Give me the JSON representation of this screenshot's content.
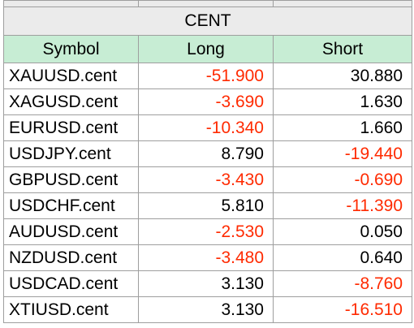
{
  "group_title": "CENT",
  "columns": {
    "symbol": "Symbol",
    "long": "Long",
    "short": "Short"
  },
  "colors": {
    "negative": "#ff2a00",
    "positive": "#000000",
    "header_bg": "#c7edd4",
    "group_bg": "#ebebeb",
    "grid": "#9e9e9e"
  },
  "rows": [
    {
      "symbol": "XAUUSD.cent",
      "long": "-51.900",
      "short": "30.880"
    },
    {
      "symbol": "XAGUSD.cent",
      "long": "-3.690",
      "short": "1.630"
    },
    {
      "symbol": "EURUSD.cent",
      "long": "-10.340",
      "short": "1.660"
    },
    {
      "symbol": "USDJPY.cent",
      "long": "8.790",
      "short": "-19.440"
    },
    {
      "symbol": "GBPUSD.cent",
      "long": "-3.430",
      "short": "-0.690"
    },
    {
      "symbol": "USDCHF.cent",
      "long": "5.810",
      "short": "-11.390"
    },
    {
      "symbol": "AUDUSD.cent",
      "long": "-2.530",
      "short": "0.050"
    },
    {
      "symbol": "NZDUSD.cent",
      "long": "-3.480",
      "short": "0.640"
    },
    {
      "symbol": "USDCAD.cent",
      "long": "3.130",
      "short": "-8.760"
    },
    {
      "symbol": "XTIUSD.cent",
      "long": "3.130",
      "short": "-16.510"
    }
  ]
}
